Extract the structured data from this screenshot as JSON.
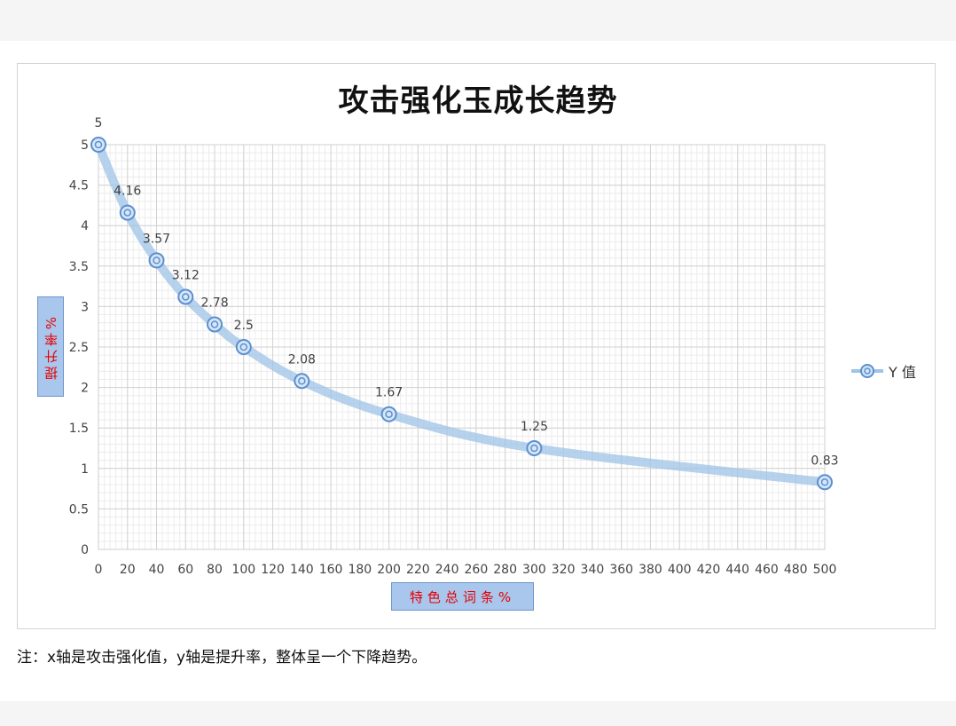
{
  "page": {
    "note": "注：x轴是攻击强化值，y轴是提升率，整体呈一个下降趋势。"
  },
  "chart_data": {
    "type": "line",
    "title": "攻击强化玉成长趋势",
    "xlabel": "特色总词条%",
    "ylabel": "提升率%",
    "xlim": [
      0,
      500
    ],
    "ylim": [
      0,
      5
    ],
    "x_ticks": [
      0,
      20,
      40,
      60,
      80,
      100,
      120,
      140,
      160,
      180,
      200,
      220,
      240,
      260,
      280,
      300,
      320,
      340,
      360,
      380,
      400,
      420,
      440,
      460,
      480,
      500
    ],
    "y_ticks": [
      0,
      0.5,
      1,
      1.5,
      2,
      2.5,
      3,
      3.5,
      4,
      4.5,
      5
    ],
    "x_tick_labels": [
      "0",
      "20",
      "40",
      "60",
      "80",
      "100",
      "120",
      "140",
      "160",
      "180",
      "200",
      "220",
      "240",
      "260",
      "280",
      "300",
      "320",
      "340",
      "360",
      "380",
      "400",
      "420",
      "440",
      "460",
      "480",
      "500"
    ],
    "y_tick_labels": [
      "0",
      "0.5",
      "1",
      "1.5",
      "2",
      "2.5",
      "3",
      "3.5",
      "4",
      "4.5",
      "5"
    ],
    "grid": true,
    "legend_position": "right",
    "series": [
      {
        "name": "Y 值",
        "color": "#9dc3e6",
        "marker_color": "#5b8fcf",
        "x": [
          0,
          20,
          40,
          60,
          80,
          100,
          140,
          200,
          300,
          500
        ],
        "y": [
          5,
          4.16,
          3.57,
          3.12,
          2.78,
          2.5,
          2.08,
          1.67,
          1.25,
          0.83
        ],
        "labels": [
          "5",
          "4.16",
          "3.57",
          "3.12",
          "2.78",
          "2.5",
          "2.08",
          "1.67",
          "1.25",
          "0.83"
        ]
      }
    ]
  }
}
